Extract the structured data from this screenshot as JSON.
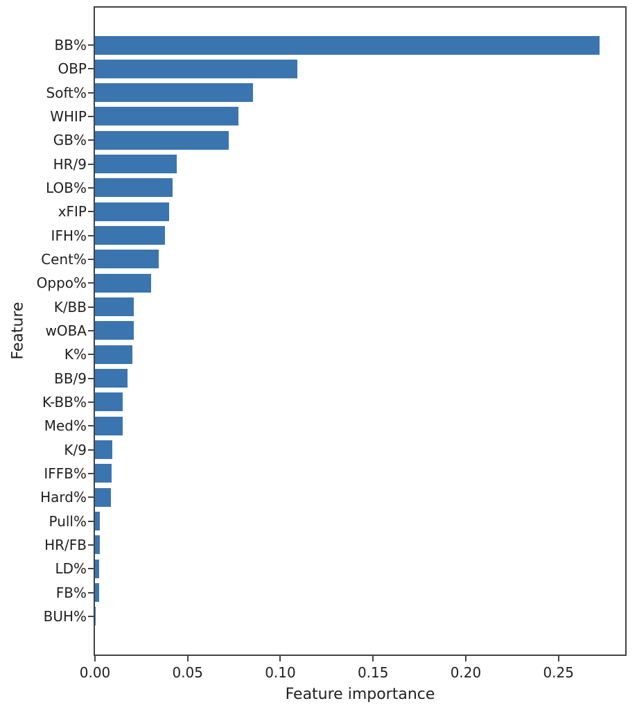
{
  "chart_data": {
    "type": "bar",
    "orientation": "horizontal",
    "title": "",
    "xlabel": "Feature importance",
    "ylabel": "Feature",
    "xlim": [
      0,
      0.286
    ],
    "grid": false,
    "legend": false,
    "bar_color": "#3b75af",
    "axis_color": "#434343",
    "text_color": "#1f1f1f",
    "x_ticks": [
      0.0,
      0.05,
      0.1,
      0.15,
      0.2,
      0.25
    ],
    "x_tick_labels": [
      "0.00",
      "0.05",
      "0.10",
      "0.15",
      "0.20",
      "0.25"
    ],
    "categories": [
      "BB%",
      "OBP",
      "Soft%",
      "WHIP",
      "GB%",
      "HR/9",
      "LOB%",
      "xFIP",
      "IFH%",
      "Cent%",
      "Oppo%",
      "K/BB",
      "wOBA",
      "K%",
      "BB/9",
      "K-BB%",
      "Med%",
      "K/9",
      "IFFB%",
      "Hard%",
      "Pull%",
      "HR/FB",
      "LD%",
      "FB%",
      "BUH%"
    ],
    "values": [
      0.272,
      0.109,
      0.0853,
      0.0775,
      0.0722,
      0.044,
      0.0419,
      0.0401,
      0.0377,
      0.0343,
      0.0302,
      0.021,
      0.0208,
      0.0201,
      0.0177,
      0.015,
      0.0148,
      0.0095,
      0.0089,
      0.0085,
      0.0027,
      0.0026,
      0.0023,
      0.0022,
      0.0002
    ]
  }
}
